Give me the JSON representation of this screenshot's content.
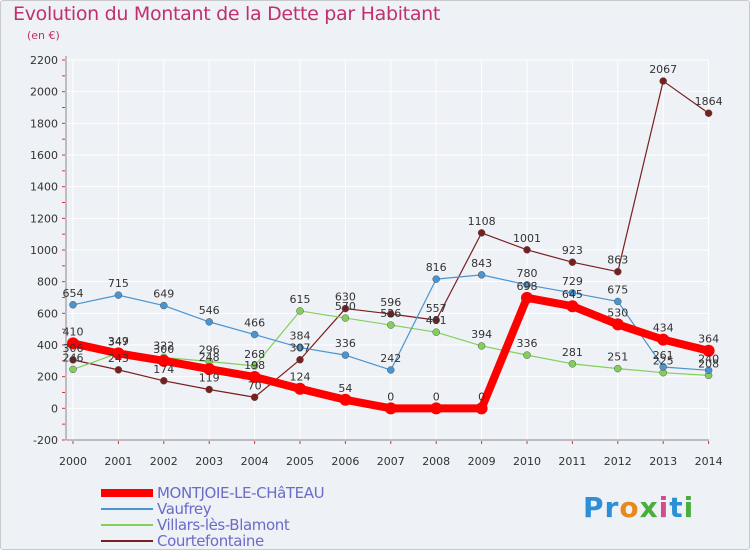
{
  "title": "Evolution du Montant de la Dette par Habitant",
  "subtitle": "(en €)",
  "logo": "Proxiti",
  "chart_data": {
    "type": "line",
    "title": "Evolution du Montant de la Dette par Habitant",
    "subtitle": "(en €)",
    "xlabel": "",
    "ylabel": "",
    "ylim": [
      -200,
      2200
    ],
    "yticks": [
      -200,
      0,
      200,
      400,
      600,
      800,
      1000,
      1200,
      1400,
      1600,
      1800,
      2000,
      2200
    ],
    "grid": true,
    "legend": "bottom-left",
    "x": [
      2000,
      2001,
      2002,
      2003,
      2004,
      2005,
      2006,
      2007,
      2008,
      2009,
      2010,
      2011,
      2012,
      2013,
      2014
    ],
    "series": [
      {
        "name": "MONTJOIE-LE-CHâTEAU",
        "color": "#ff0000",
        "values": [
          410,
          347,
          300,
          248,
          198,
          124,
          54,
          0,
          0,
          0,
          698,
          645,
          530,
          434,
          364
        ],
        "labels": [
          "410",
          "347",
          "300",
          "248",
          "198",
          "124",
          "54",
          "0",
          "0",
          "0",
          "698",
          "645",
          "530",
          "434",
          "364"
        ]
      },
      {
        "name": "Vaufrey",
        "color": "#4a94d0",
        "values": [
          654,
          715,
          649,
          546,
          466,
          384,
          336,
          242,
          816,
          843,
          780,
          729,
          675,
          261,
          240
        ],
        "labels": [
          "654",
          "715",
          "649",
          "546",
          "466",
          "384",
          "336",
          "242",
          "816",
          "843",
          "780",
          "729",
          "675",
          "261",
          "240"
        ]
      },
      {
        "name": "Villars-lès-Blamont",
        "color": "#82d05a",
        "values": [
          246,
          349,
          322,
          296,
          268,
          615,
          570,
          526,
          481,
          394,
          336,
          281,
          251,
          225,
          208
        ],
        "labels": [
          "246",
          "349",
          "322",
          "296",
          "268",
          "615",
          "570",
          "526",
          "481",
          "394",
          "336",
          "281",
          "251",
          "225",
          "208"
        ]
      },
      {
        "name": "Courtefontaine",
        "color": "#7a1f1f",
        "values": [
          306,
          243,
          174,
          119,
          70,
          307,
          630,
          596,
          557,
          1108,
          1001,
          923,
          863,
          2067,
          1864
        ],
        "labels": [
          "306",
          "243",
          "174",
          "119",
          "70",
          "307",
          "630",
          "596",
          "557",
          "1108",
          "1001",
          "923",
          "863",
          "2067",
          "1864"
        ]
      }
    ]
  }
}
